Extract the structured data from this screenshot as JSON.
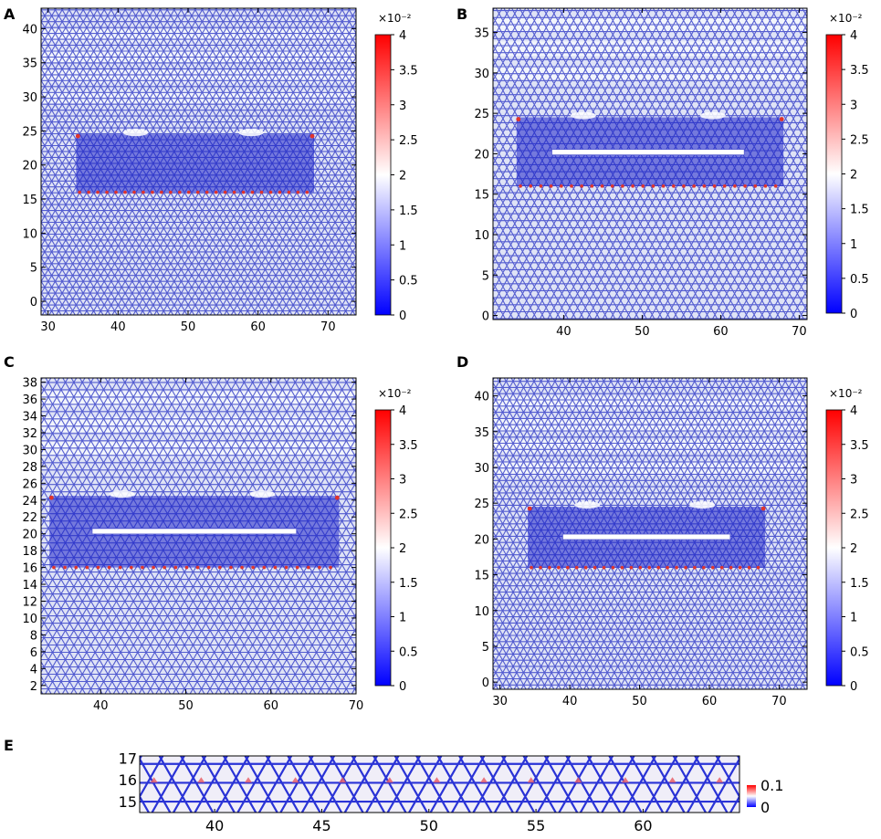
{
  "figure_title": "",
  "chart_data": [
    {
      "panel": "A",
      "type": "heatmap",
      "title": "",
      "xlabel": "",
      "ylabel": "",
      "xlim": [
        29,
        74
      ],
      "ylim": [
        -2,
        43
      ],
      "xticks": [
        30,
        40,
        50,
        60,
        70
      ],
      "yticks": [
        0,
        5,
        10,
        15,
        20,
        25,
        30,
        35,
        40
      ],
      "region": {
        "x": [
          34,
          68
        ],
        "y": [
          16,
          24.5
        ]
      },
      "crack": null,
      "colorbar": {
        "ticks": [
          "0",
          "0.5",
          "1",
          "1.5",
          "2",
          "2.5",
          "3",
          "3.5",
          "4"
        ],
        "exponent_label": "×10⁻²",
        "range": [
          0,
          4
        ]
      }
    },
    {
      "panel": "B",
      "type": "heatmap",
      "title": "",
      "xlabel": "",
      "ylabel": "",
      "xlim": [
        31,
        71
      ],
      "ylim": [
        -0.5,
        38
      ],
      "xticks": [
        40,
        50,
        60,
        70
      ],
      "yticks": [
        0,
        5,
        10,
        15,
        20,
        25,
        30,
        35
      ],
      "region": {
        "x": [
          34,
          68
        ],
        "y": [
          16,
          24.5
        ]
      },
      "crack": {
        "x": [
          38.5,
          63
        ],
        "y": 20.2
      },
      "colorbar": {
        "ticks": [
          "0",
          "0.5",
          "1",
          "1.5",
          "2",
          "2.5",
          "3",
          "3.5",
          "4"
        ],
        "exponent_label": "×10⁻²",
        "range": [
          0,
          4
        ]
      }
    },
    {
      "panel": "C",
      "type": "heatmap",
      "title": "",
      "xlabel": "",
      "ylabel": "",
      "xlim": [
        33,
        70
      ],
      "ylim": [
        1,
        38.5
      ],
      "xticks": [
        40,
        50,
        60,
        70
      ],
      "yticks": [
        2,
        4,
        6,
        8,
        10,
        12,
        14,
        16,
        18,
        20,
        22,
        24,
        26,
        28,
        30,
        32,
        34,
        36,
        38
      ],
      "region": {
        "x": [
          34,
          68
        ],
        "y": [
          16,
          24.5
        ]
      },
      "crack": {
        "x": [
          39,
          63
        ],
        "y": 20.3
      },
      "colorbar": {
        "ticks": [
          "0",
          "0.5",
          "1",
          "1.5",
          "2",
          "2.5",
          "3",
          "3.5",
          "4"
        ],
        "exponent_label": "×10⁻²",
        "range": [
          0,
          4
        ]
      }
    },
    {
      "panel": "D",
      "type": "heatmap",
      "title": "",
      "xlabel": "",
      "ylabel": "",
      "xlim": [
        29,
        74
      ],
      "ylim": [
        -1,
        42.5
      ],
      "xticks": [
        30,
        40,
        50,
        60,
        70
      ],
      "yticks": [
        0,
        5,
        10,
        15,
        20,
        25,
        30,
        35,
        40
      ],
      "region": {
        "x": [
          34,
          68
        ],
        "y": [
          16,
          24.5
        ]
      },
      "crack": {
        "x": [
          39,
          63
        ],
        "y": 20.3
      },
      "colorbar": {
        "ticks": [
          "0",
          "0.5",
          "1",
          "1.5",
          "2",
          "2.5",
          "3",
          "3.5",
          "4"
        ],
        "exponent_label": "×10⁻²",
        "range": [
          0,
          4
        ]
      }
    },
    {
      "panel": "E",
      "type": "heatmap",
      "title": "",
      "xlabel": "",
      "ylabel": "",
      "xlim": [
        36.5,
        64.5
      ],
      "ylim": [
        14.5,
        17.1
      ],
      "xticks": [
        40,
        45,
        50,
        55,
        60
      ],
      "yticks": [
        15,
        16,
        17
      ],
      "colorbar": {
        "ticks": [
          "0",
          "0.1"
        ],
        "exponent_label": "",
        "range": [
          0,
          0.1
        ]
      }
    }
  ]
}
